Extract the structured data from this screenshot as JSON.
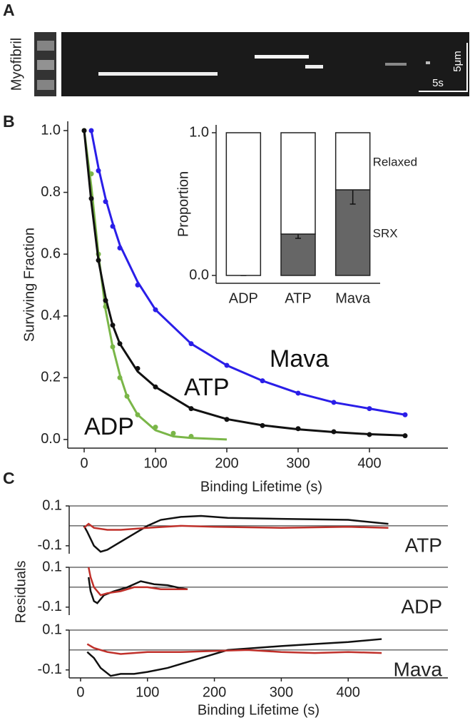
{
  "chart_data": [
    {
      "type": "image",
      "panel_label": "A",
      "y_label": "Myofibril",
      "scale_labels": [
        "5μm",
        "5s"
      ]
    },
    {
      "type": "scatter",
      "panel_label": "B",
      "x_label": "Binding Lifetime (s)",
      "y_label": "Surviving Fraction",
      "xlim": [
        -23,
        510
      ],
      "xticks": [
        0,
        100,
        200,
        300,
        400
      ],
      "ylim": [
        -0.028,
        1.03
      ],
      "yticks": [
        {
          "value": 0,
          "label": "0.0"
        },
        0.2,
        0.4,
        0.6,
        0.8,
        {
          "value": 1,
          "label": "1.0"
        }
      ],
      "series": [
        {
          "name": "ADP",
          "color": "#7ab648",
          "x": [
            0,
            10,
            20,
            30,
            40,
            50,
            60,
            75,
            100,
            125,
            150,
            200
          ],
          "values": [
            1,
            0.86,
            0.6,
            0.43,
            0.3,
            0.2,
            0.14,
            0.08,
            0.04,
            0.02,
            0.01,
            null
          ],
          "fit": [
            1,
            0.82,
            0.6,
            0.42,
            0.3,
            0.21,
            0.14,
            0.08,
            0.03,
            0.01,
            0.005,
            0
          ]
        },
        {
          "name": "ATP",
          "color": "#111111",
          "x": [
            0,
            10,
            20,
            30,
            40,
            50,
            75,
            100,
            150,
            200,
            250,
            300,
            350,
            400,
            450
          ],
          "values": [
            1,
            0.78,
            0.58,
            0.45,
            0.37,
            0.31,
            0.23,
            0.17,
            0.1,
            0.065,
            0.045,
            0.035,
            0.025,
            0.016,
            0.012
          ],
          "fit": [
            1,
            0.77,
            0.58,
            0.46,
            0.37,
            0.31,
            0.22,
            0.17,
            0.1,
            0.066,
            0.046,
            0.033,
            0.024,
            0.017,
            0.013
          ]
        },
        {
          "name": "Mava",
          "color": "#2a1ee8",
          "x": [
            10,
            20,
            30,
            40,
            50,
            75,
            100,
            150,
            200,
            250,
            300,
            350,
            400,
            450
          ],
          "values": [
            1,
            0.87,
            0.77,
            0.69,
            0.62,
            0.5,
            0.42,
            0.31,
            0.24,
            0.19,
            0.15,
            0.12,
            0.1,
            0.08
          ],
          "fit": [
            1,
            0.88,
            0.78,
            0.7,
            0.63,
            0.51,
            0.42,
            0.31,
            0.24,
            0.19,
            0.15,
            0.12,
            0.1,
            0.08
          ]
        }
      ]
    },
    {
      "type": "bar",
      "y_label": "Proportion",
      "categories": [
        "ADP",
        "ATP",
        "Mava"
      ],
      "ylim": [
        -0.055,
        1.055
      ],
      "yticks": [
        {
          "value": 0,
          "label": "0.0"
        },
        {
          "value": 1,
          "label": "1.0"
        }
      ],
      "series": [
        {
          "name": "SRX",
          "color": "#666666",
          "values": [
            0,
            0.29,
            0.6
          ],
          "errors": [
            0,
            0.03,
            0.1
          ]
        },
        {
          "name": "Relaxed",
          "color": "#ffffff",
          "values": [
            1,
            0.71,
            0.4
          ]
        }
      ]
    },
    {
      "type": "line",
      "panel_label": "C",
      "x_label": "Binding Lifetime (s)",
      "y_label": "Residuals",
      "xlim": [
        -17,
        549
      ],
      "xticks": [
        0,
        100,
        200,
        300,
        400
      ],
      "ylim": [
        -0.14,
        0.1
      ],
      "yticks": [
        0.1,
        -0.1
      ],
      "panels": [
        {
          "label": "ATP",
          "series": [
            {
              "color": "#111111",
              "x": [
                5,
                10,
                20,
                30,
                40,
                60,
                80,
                100,
                120,
                150,
                180,
                220,
                300,
                400,
                460
              ],
              "values": [
                0,
                -0.03,
                -0.1,
                -0.13,
                -0.12,
                -0.08,
                -0.04,
                0,
                0.03,
                0.045,
                0.05,
                0.04,
                0.035,
                0.03,
                0.01
              ]
            },
            {
              "color": "#c0302a",
              "x": [
                5,
                12,
                20,
                40,
                60,
                100,
                150,
                200,
                300,
                400,
                460
              ],
              "values": [
                -0.01,
                0.01,
                -0.01,
                -0.02,
                -0.02,
                -0.01,
                0,
                -0.005,
                -0.01,
                -0.005,
                -0.01
              ]
            }
          ]
        },
        {
          "label": "ADP",
          "series": [
            {
              "color": "#111111",
              "x": [
                12,
                15,
                20,
                25,
                35,
                50,
                70,
                90,
                110,
                130,
                150,
                160
              ],
              "values": [
                0.05,
                -0.02,
                -0.07,
                -0.08,
                -0.04,
                -0.02,
                0,
                0.03,
                0.015,
                0.01,
                -0.005,
                -0.01
              ]
            },
            {
              "color": "#c0302a",
              "x": [
                12,
                15,
                20,
                30,
                40,
                60,
                80,
                100,
                120,
                140,
                160
              ],
              "values": [
                0.1,
                0.05,
                0,
                -0.04,
                -0.03,
                -0.02,
                0,
                0,
                -0.01,
                -0.01,
                -0.01
              ]
            }
          ]
        },
        {
          "label": "Mava",
          "series": [
            {
              "color": "#111111",
              "x": [
                10,
                20,
                30,
                45,
                60,
                80,
                100,
                130,
                160,
                190,
                220,
                260,
                300,
                350,
                400,
                450
              ],
              "values": [
                -0.01,
                -0.04,
                -0.09,
                -0.13,
                -0.12,
                -0.12,
                -0.11,
                -0.09,
                -0.06,
                -0.03,
                0,
                0.01,
                0.02,
                0.03,
                0.04,
                0.055
              ]
            },
            {
              "color": "#c0302a",
              "x": [
                10,
                20,
                40,
                60,
                100,
                150,
                200,
                250,
                300,
                350,
                400,
                450
              ],
              "values": [
                0.03,
                0.01,
                -0.01,
                -0.02,
                -0.01,
                -0.01,
                -0.005,
                0,
                -0.01,
                -0.015,
                -0.01,
                -0.015
              ]
            }
          ]
        }
      ]
    }
  ]
}
